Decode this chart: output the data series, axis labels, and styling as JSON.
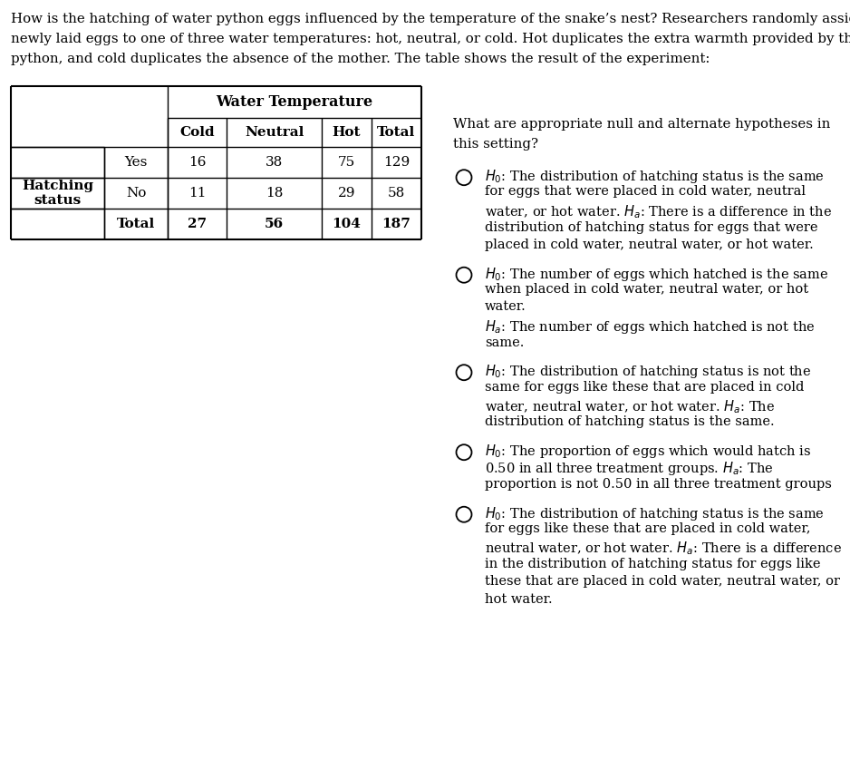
{
  "intro_line1": "How is the hatching of water python eggs influenced by the temperature of the snake’s nest? Researchers randomly assigned",
  "intro_line2": "newly laid eggs to one of three water temperatures: hot, neutral, or cold. Hot duplicates the extra warmth provided by the mother",
  "intro_line3": "python, and cold duplicates the absence of the mother. The table shows the result of the experiment:",
  "table_header": "Water Temperature",
  "col_headers": [
    "Cold",
    "Neutral",
    "Hot",
    "Total"
  ],
  "row_labels": [
    "Yes",
    "No",
    "Total"
  ],
  "table_data": [
    [
      16,
      38,
      75,
      129
    ],
    [
      11,
      18,
      29,
      58
    ],
    [
      27,
      56,
      104,
      187
    ]
  ],
  "question_line1": "What are appropriate null and alternate hypotheses in",
  "question_line2": "this setting?",
  "options": [
    "H0: The distribution of hatching status is the same\nfor eggs that were placed in cold water, neutral\nwater, or hot water. Ha: There is a difference in the\ndistribution of hatching status for eggs that were\nplaced in cold water, neutral water, or hot water.",
    "H0: The number of eggs which hatched is the same\nwhen placed in cold water, neutral water, or hot\nwater.\nHa: The number of eggs which hatched is not the\nsame.",
    "H0: The distribution of hatching status is not the\nsame for eggs like these that are placed in cold\nwater, neutral water, or hot water. Ha: The\ndistribution of hatching status is the same.",
    "H0: The proportion of eggs which would hatch is\n0.50 in all three treatment groups. Ha: The\nproportion is not 0.50 in all three treatment groups",
    "H0: The distribution of hatching status is the same\nfor eggs like these that are placed in cold water,\nneutral water, or hot water. Ha: There is a difference\nin the distribution of hatching status for eggs like\nthese that are placed in cold water, neutral water, or\nhot water."
  ],
  "bg_color": "#ffffff",
  "text_color": "#000000"
}
